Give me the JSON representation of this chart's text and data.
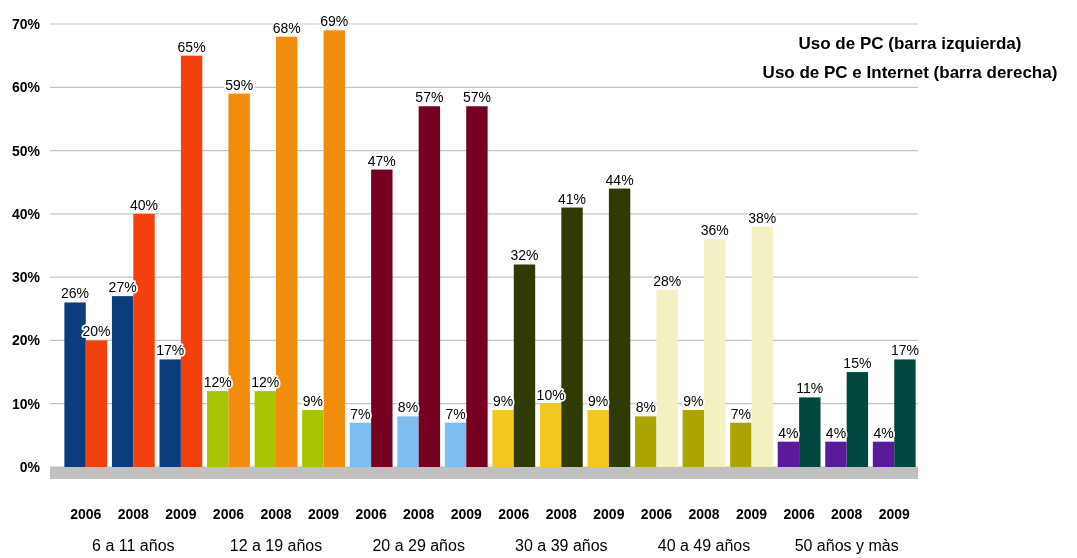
{
  "chart_data": {
    "type": "bar",
    "title": "Uso de PC (barra izquierda)",
    "subtitle": "Uso de PC e Internet (barra derecha)",
    "categories": [
      "2006",
      "2008",
      "2009",
      "2006",
      "2008",
      "2009",
      "2006",
      "2008",
      "2009",
      "2006",
      "2008",
      "2009",
      "2006",
      "2008",
      "2009",
      "2006",
      "2008",
      "2009"
    ],
    "annotations": [
      "6 a 11 años",
      "12 a 19 años",
      "20 a 29 años",
      "30 a 39 años",
      "40 a 49 años",
      "50 años y màs"
    ],
    "series": [
      {
        "values": [
          26,
          27,
          17,
          12,
          12,
          9,
          7,
          8,
          7,
          9,
          10,
          9,
          8,
          9,
          7,
          4,
          4,
          4
        ],
        "value_labels": [
          "26%",
          "27%",
          "17%",
          "12%",
          "12%",
          "9%",
          "7%",
          "8%",
          "7%",
          "9%",
          "10%",
          "9%",
          "8%",
          "9%",
          "7%",
          "4%",
          "4%",
          "4%"
        ],
        "colors": [
          "#0b3d7c",
          "#0b3d7c",
          "#0b3d7c",
          "#a9c400",
          "#a9c400",
          "#a9c400",
          "#7dbdf0",
          "#7dbdf0",
          "#7dbdf0",
          "#f2c81e",
          "#f2c81e",
          "#f2c81e",
          "#aca400",
          "#aca400",
          "#aca400",
          "#5b1a9c",
          "#5b1a9c",
          "#5b1a9c"
        ]
      },
      {
        "values": [
          20,
          40,
          65,
          59,
          68,
          69,
          47,
          57,
          57,
          32,
          41,
          44,
          28,
          36,
          38,
          11,
          15,
          17
        ],
        "value_labels": [
          "20%",
          "40%",
          "65%",
          "59%",
          "68%",
          "69%",
          "47%",
          "57%",
          "57%",
          "32%",
          "41%",
          "44%",
          "28%",
          "36%",
          "38%",
          "11%",
          "15%",
          "17%"
        ],
        "colors": [
          "#f3400e",
          "#f3400e",
          "#f3400e",
          "#f28c0c",
          "#f28c0c",
          "#f28c0c",
          "#760020",
          "#760020",
          "#760020",
          "#2f3a05",
          "#2f3a05",
          "#2f3a05",
          "#f3f1c2",
          "#f3f1c2",
          "#f3f1c2",
          "#034840",
          "#034840",
          "#034840"
        ]
      }
    ],
    "ylim": [
      0,
      70
    ],
    "yticks": [
      {
        "value": 0,
        "label": "0%"
      },
      {
        "value": 10,
        "label": "10%"
      },
      {
        "value": 20,
        "label": "20%"
      },
      {
        "value": 30,
        "label": "30%"
      },
      {
        "value": 40,
        "label": "40%"
      },
      {
        "value": 50,
        "label": "50%"
      },
      {
        "value": 60,
        "label": "60%"
      },
      {
        "value": 70,
        "label": "70%"
      }
    ],
    "grid": "y"
  }
}
